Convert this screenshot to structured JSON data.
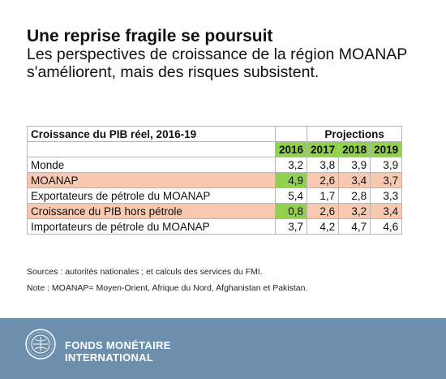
{
  "header": {
    "title": "Une reprise fragile se poursuit",
    "subtitle": "Les perspectives de croissance de la région MOANAP s'améliorent, mais des risques subsistent."
  },
  "chart_data": {
    "type": "table",
    "table_title": "Croissance du PIB réel, 2016-19",
    "projections_label": "Projections",
    "columns": [
      "2016",
      "2017",
      "2018",
      "2019"
    ],
    "rows": [
      {
        "label": "Monde",
        "values": [
          "3,2",
          "3,8",
          "3,9",
          "3,9"
        ]
      },
      {
        "label": "MOANAP",
        "values": [
          "4,9",
          "2,6",
          "3,4",
          "3,7"
        ]
      },
      {
        "label": "Exportateurs de pétrole du MOANAP",
        "values": [
          "5,4",
          "1,7",
          "2,8",
          "3,3"
        ]
      },
      {
        "label": "Croissance du PIB hors pétrole",
        "values": [
          "0,8",
          "2,6",
          "3,2",
          "3,4"
        ]
      },
      {
        "label": "Importateurs de pétrole du MOANAP",
        "values": [
          "3,7",
          "4,2",
          "4,7",
          "4,6"
        ]
      }
    ],
    "colors": {
      "header_green": "#92d050",
      "highlight_pink": "#f8c8b0"
    }
  },
  "notes": {
    "sources": "Sources : autorités nationales ; et calculs des services du FMI.",
    "note": "Note : MOANAP= Moyen-Orient, Afrique du Nord, Afghanistan et Pakistan."
  },
  "footer": {
    "brand_line1": "FONDS MONÉTAIRE",
    "brand_line2": "INTERNATIONAL",
    "logo_icon": "imf-seal-icon",
    "background": "#6b8fac"
  }
}
